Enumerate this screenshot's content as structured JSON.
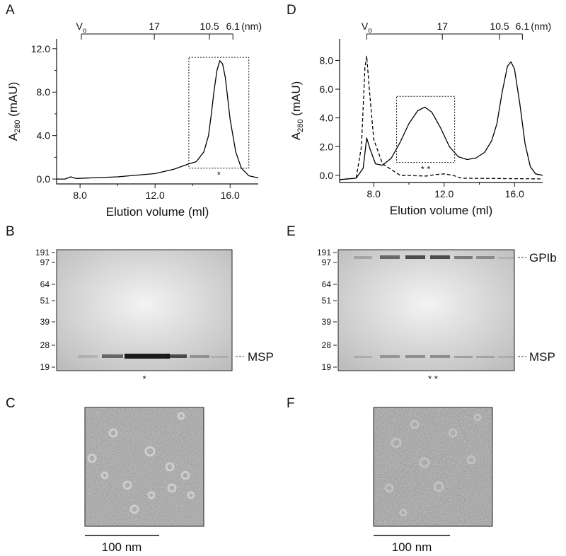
{
  "panels": [
    "A",
    "B",
    "C",
    "D",
    "E",
    "F"
  ],
  "chart_data": [
    {
      "type": "line",
      "xlabel": "Elution volume (ml)",
      "ylabel": [
        "A",
        "280",
        "(mAU)"
      ],
      "xlim": [
        6.75,
        17.5
      ],
      "ylim": [
        -0.45,
        12.9
      ],
      "xticks": [
        {
          "value": 8,
          "label": "8.0"
        },
        {
          "value": 12,
          "label": "12.0"
        },
        {
          "value": 16,
          "label": "16.0"
        }
      ],
      "minor_xticks": [
        10,
        14
      ],
      "yticks": [
        {
          "value": 0,
          "label": "0.0"
        },
        {
          "value": 4,
          "label": "4.0"
        },
        {
          "value": 8,
          "label": "8.0"
        },
        {
          "value": 12,
          "label": "12.0"
        }
      ],
      "minor_yticks": [
        2,
        6,
        10
      ],
      "size_markers": [
        {
          "label": [
            "V",
            "o"
          ],
          "x": 8.07
        },
        {
          "label": "17",
          "x": 11.96
        },
        {
          "label": "10.5",
          "x": 14.9
        },
        {
          "label": "6.1",
          "x": 16.15
        }
      ],
      "size_unit": "(nm)",
      "box": {
        "x": [
          13.8,
          17.0
        ],
        "y": [
          1.0,
          11.2
        ],
        "mark": "*"
      },
      "series": [
        {
          "style": "solid",
          "color": "#000000",
          "x": [
            6.75,
            7.2,
            7.5,
            7.8,
            8.5,
            10,
            12,
            13,
            13.8,
            14.2,
            14.6,
            14.85,
            15.0,
            15.15,
            15.3,
            15.45,
            15.6,
            15.75,
            16.0,
            16.3,
            16.6,
            17.0,
            17.5
          ],
          "values": [
            0.0,
            0.0,
            0.2,
            0.05,
            0.1,
            0.2,
            0.5,
            0.9,
            1.4,
            1.6,
            2.5,
            4.0,
            6.0,
            8.2,
            10.0,
            10.9,
            10.6,
            9.3,
            5.5,
            2.5,
            1.0,
            0.3,
            0.1
          ]
        }
      ]
    },
    {
      "type": "line",
      "xlabel": "Elution volume (ml)",
      "ylabel": [
        "A",
        "280",
        "(mAU)"
      ],
      "xlim": [
        6.06,
        17.6
      ],
      "ylim": [
        -0.5,
        9.5
      ],
      "xticks": [
        {
          "value": 8,
          "label": "8.0"
        },
        {
          "value": 12,
          "label": "12.0"
        },
        {
          "value": 16,
          "label": "16.0"
        }
      ],
      "minor_xticks": [
        10,
        14
      ],
      "yticks": [
        {
          "value": 0,
          "label": "0.0"
        },
        {
          "value": 2,
          "label": "2.0"
        },
        {
          "value": 4,
          "label": "4.0"
        },
        {
          "value": 6,
          "label": "6.0"
        },
        {
          "value": 8,
          "label": "8.0"
        }
      ],
      "size_markers": [
        {
          "label": [
            "V",
            "o"
          ],
          "x": 7.6
        },
        {
          "label": "17",
          "x": 11.9
        },
        {
          "label": "10.5",
          "x": 15.15
        },
        {
          "label": "6.1",
          "x": 16.45
        }
      ],
      "size_unit": "(nm)",
      "box": {
        "x": [
          9.3,
          12.6
        ],
        "y": [
          0.9,
          5.5
        ],
        "mark": "* *"
      },
      "series": [
        {
          "style": "solid",
          "color": "#000000",
          "x": [
            6.06,
            7.0,
            7.4,
            7.6,
            7.8,
            8.1,
            8.5,
            9.0,
            9.5,
            10.0,
            10.5,
            10.9,
            11.3,
            11.8,
            12.3,
            12.8,
            13.3,
            13.8,
            14.3,
            14.7,
            15.0,
            15.3,
            15.6,
            15.8,
            16.0,
            16.3,
            16.6,
            16.9,
            17.2,
            17.6
          ],
          "values": [
            -0.3,
            -0.2,
            0.5,
            2.6,
            1.8,
            0.8,
            0.7,
            1.2,
            2.3,
            3.6,
            4.5,
            4.75,
            4.4,
            3.3,
            2.0,
            1.3,
            1.1,
            1.2,
            1.6,
            2.4,
            3.6,
            5.8,
            7.6,
            7.9,
            7.4,
            5.0,
            2.2,
            0.6,
            0.1,
            0.0
          ]
        },
        {
          "style": "dashed",
          "color": "#000000",
          "x": [
            6.06,
            7.0,
            7.3,
            7.5,
            7.6,
            7.75,
            8.0,
            8.5,
            9.5,
            11.0,
            11.5,
            12.0,
            12.5,
            13.0,
            17.6
          ],
          "values": [
            -0.3,
            -0.2,
            2.0,
            7.5,
            8.3,
            6.0,
            2.5,
            0.8,
            0.0,
            -0.05,
            0.05,
            0.1,
            0.0,
            -0.2,
            -0.25
          ]
        }
      ]
    }
  ],
  "gels": [
    {
      "ladder": [
        "191",
        "97",
        "64",
        "51",
        "39",
        "28",
        "19"
      ],
      "bands": [
        "MSP"
      ],
      "mark": "*"
    },
    {
      "ladder": [
        "191",
        "97",
        "64",
        "51",
        "39",
        "28",
        "19"
      ],
      "bands": [
        "GPIb",
        "MSP"
      ],
      "mark": "* *"
    }
  ],
  "micrographs": [
    {
      "scale_bar": "100 nm"
    },
    {
      "scale_bar": "100 nm"
    }
  ]
}
